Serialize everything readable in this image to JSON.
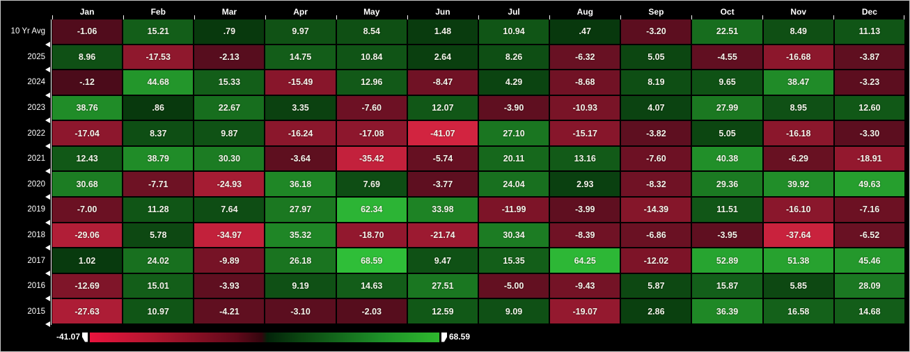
{
  "chart_data": {
    "type": "heatmap",
    "title": "",
    "columns": [
      "Jan",
      "Feb",
      "Mar",
      "Apr",
      "May",
      "Jun",
      "Jul",
      "Aug",
      "Sep",
      "Oct",
      "Nov",
      "Dec"
    ],
    "rows": [
      {
        "label": "10 Yr Avg",
        "values": [
          "-1.06",
          "15.21",
          ".79",
          "9.97",
          "8.54",
          "1.48",
          "10.94",
          ".47",
          "-3.20",
          "22.51",
          "8.49",
          "11.13"
        ]
      },
      {
        "label": "2025",
        "values": [
          "8.96",
          "-17.53",
          "-2.13",
          "14.75",
          "10.84",
          "2.64",
          "8.26",
          "-6.32",
          "5.05",
          "-4.55",
          "-16.68",
          "-3.87"
        ]
      },
      {
        "label": "2024",
        "values": [
          "-.12",
          "44.68",
          "15.33",
          "-15.49",
          "12.96",
          "-8.47",
          "4.29",
          "-8.68",
          "8.19",
          "9.65",
          "38.47",
          "-3.23"
        ]
      },
      {
        "label": "2023",
        "values": [
          "38.76",
          ".86",
          "22.67",
          "3.35",
          "-7.60",
          "12.07",
          "-3.90",
          "-10.93",
          "4.07",
          "27.99",
          "8.95",
          "12.60"
        ]
      },
      {
        "label": "2022",
        "values": [
          "-17.04",
          "8.37",
          "9.87",
          "-16.24",
          "-17.08",
          "-41.07",
          "27.10",
          "-15.17",
          "-3.82",
          "5.05",
          "-16.18",
          "-3.30"
        ]
      },
      {
        "label": "2021",
        "values": [
          "12.43",
          "38.79",
          "30.30",
          "-3.64",
          "-35.42",
          "-5.74",
          "20.11",
          "13.16",
          "-7.60",
          "40.38",
          "-6.29",
          "-18.91"
        ]
      },
      {
        "label": "2020",
        "values": [
          "30.68",
          "-7.71",
          "-24.93",
          "36.18",
          "7.69",
          "-3.77",
          "24.04",
          "2.93",
          "-8.32",
          "29.36",
          "39.92",
          "49.63"
        ]
      },
      {
        "label": "2019",
        "values": [
          "-7.00",
          "11.28",
          "7.64",
          "27.97",
          "62.34",
          "33.98",
          "-11.99",
          "-3.99",
          "-14.39",
          "11.51",
          "-16.10",
          "-7.16"
        ]
      },
      {
        "label": "2018",
        "values": [
          "-29.06",
          "5.78",
          "-34.97",
          "35.32",
          "-18.70",
          "-21.74",
          "30.34",
          "-8.39",
          "-6.86",
          "-3.95",
          "-37.64",
          "-6.52"
        ]
      },
      {
        "label": "2017",
        "values": [
          "1.02",
          "24.02",
          "-9.89",
          "26.18",
          "68.59",
          "9.47",
          "15.35",
          "64.25",
          "-12.02",
          "52.89",
          "51.38",
          "45.46"
        ]
      },
      {
        "label": "2016",
        "values": [
          "-12.69",
          "15.01",
          "-3.93",
          "9.19",
          "14.63",
          "27.51",
          "-5.00",
          "-9.43",
          "5.87",
          "15.87",
          "5.85",
          "28.09"
        ]
      },
      {
        "label": "2015",
        "values": [
          "-27.63",
          "10.97",
          "-4.21",
          "-3.10",
          "-2.03",
          "12.59",
          "9.09",
          "-19.07",
          "2.86",
          "36.39",
          "16.58",
          "14.68"
        ]
      }
    ],
    "scale": {
      "min": -41.07,
      "max": 68.59,
      "min_label": "-41.07",
      "max_label": "68.59",
      "neg_bright": "#d22440",
      "neg_dark": "#4a0b1a",
      "pos_dark": "#07350c",
      "pos_bright": "#2fbe38"
    },
    "legend_position": "bottom",
    "grid": false
  }
}
